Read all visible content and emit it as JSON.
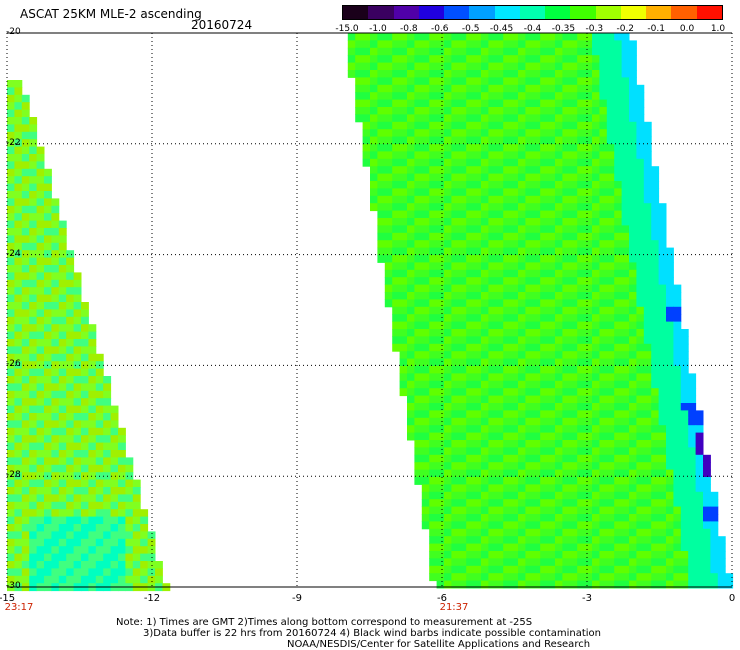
{
  "header": {
    "title": "ASCAT 25KM MLE-2 ascending",
    "date": "20160724"
  },
  "colorbar": {
    "labels": [
      "-15.0",
      "-1.0",
      "-0.8",
      "-0.6",
      "-0.5",
      "-0.45",
      "-0.4",
      "-0.35",
      "-0.3",
      "-0.2",
      "-0.1",
      "0.0",
      "1.0"
    ],
    "colors": [
      "#1a001a",
      "#3a0060",
      "#5000a8",
      "#2000e0",
      "#0050ff",
      "#00a0ff",
      "#00e8ff",
      "#00ffb0",
      "#00ff40",
      "#40ff00",
      "#a0ff00",
      "#f0ff00",
      "#ffb000",
      "#ff6000",
      "#ff1000"
    ]
  },
  "map": {
    "y_labels": [
      "-20",
      "-22",
      "-24",
      "-26",
      "-28",
      "-30"
    ],
    "x_labels": [
      "-15",
      "-12",
      "-9",
      "-6",
      "-3",
      "0"
    ],
    "lat_range": [
      -30,
      -20
    ],
    "lon_range": [
      -15,
      0
    ],
    "time_labels": [
      {
        "text": "23:17",
        "lon": -15
      },
      {
        "text": "21:37",
        "lon": -6
      }
    ],
    "swaths": {
      "left": {
        "description_colors": [
          "#a0f000",
          "#80ff20",
          "#40ff80",
          "#00ffc0"
        ]
      },
      "right": {
        "description_colors": [
          "#60ff00",
          "#40ff20",
          "#20ff40",
          "#00ffa0",
          "#00e0ff",
          "#0040ff"
        ]
      }
    }
  },
  "notes": {
    "line1": "Note: 1) Times are GMT 2)Times along bottom correspond to measurement at -25S",
    "line2": "3)Data buffer is 22 hrs from 20160724 4) Black wind barbs indicate possible contamination",
    "line3": "NOAA/NESDIS/Center for Satellite Applications and Research"
  }
}
